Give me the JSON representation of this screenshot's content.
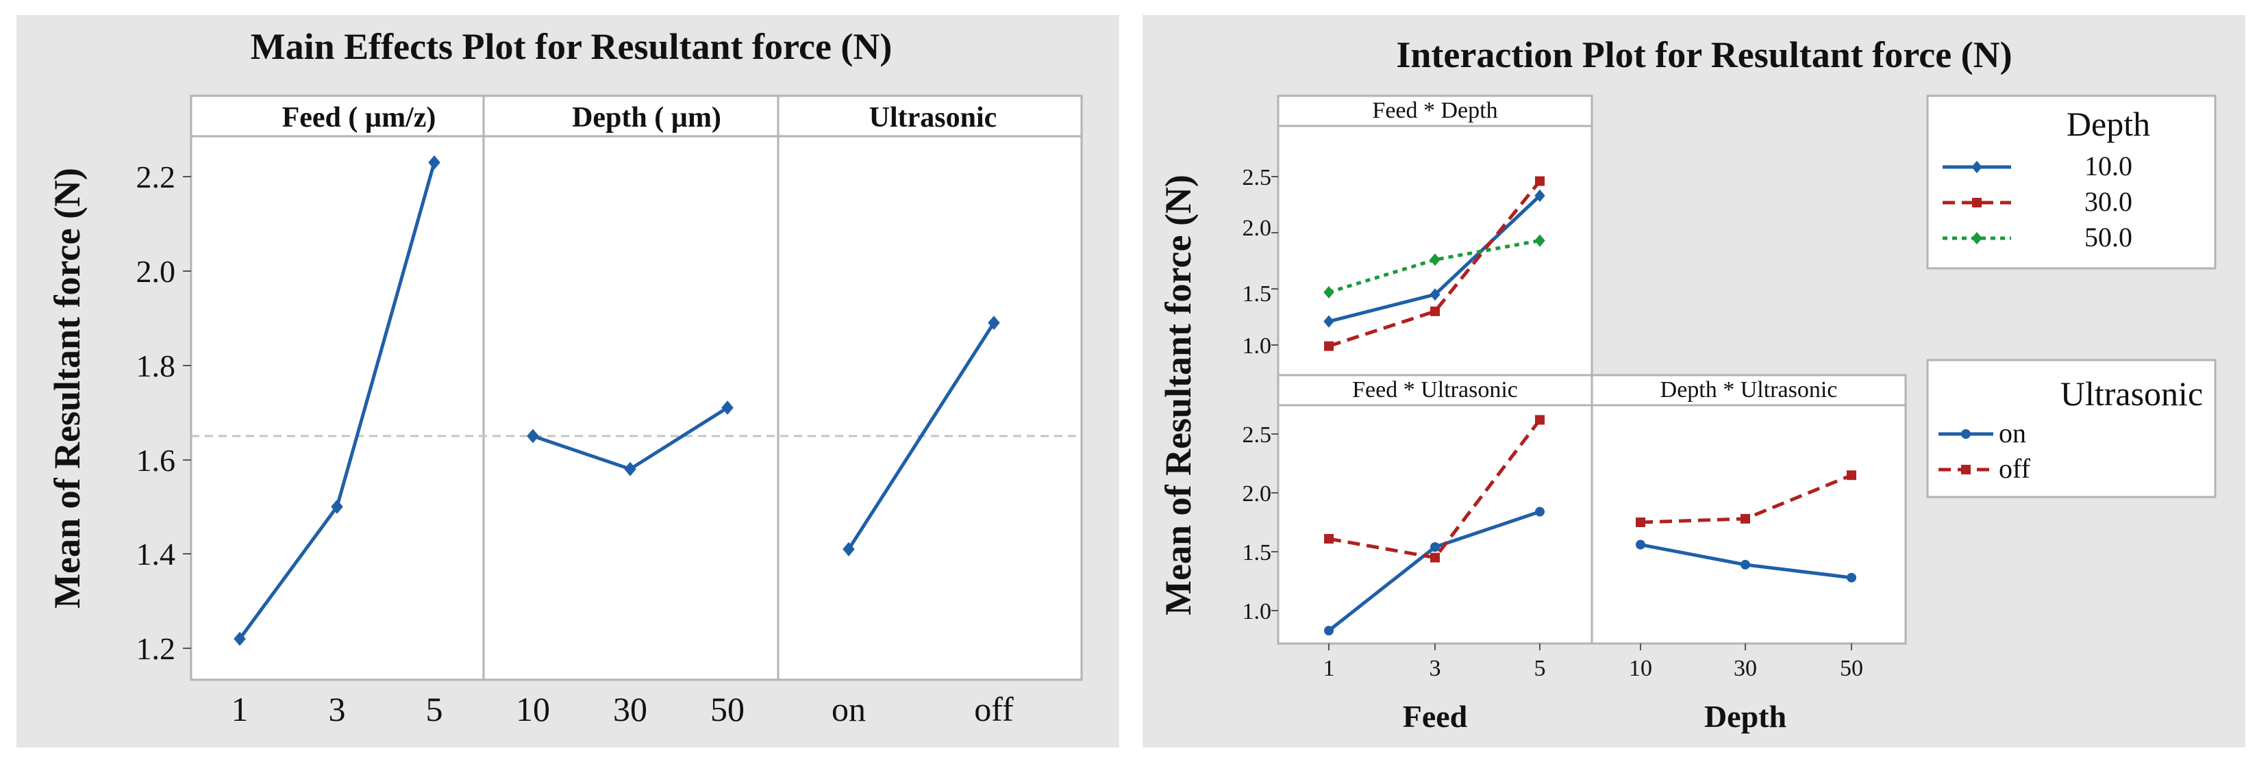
{
  "main_effects": {
    "title": "Main Effects Plot for Resultant force (N)",
    "ylabel": "Mean of Resultant force (N)",
    "y_ticks": [
      "1.2",
      "1.4",
      "1.6",
      "1.8",
      "2.0",
      "2.2"
    ],
    "panels": [
      {
        "title": "Feed ( µm/z)",
        "ticks": [
          "1",
          "3",
          "5"
        ]
      },
      {
        "title": "Depth ( µm)",
        "ticks": [
          "10",
          "30",
          "50"
        ]
      },
      {
        "title": "Ultrasonic",
        "ticks": [
          "on",
          "off"
        ]
      }
    ]
  },
  "interaction": {
    "title": "Interaction Plot for Resultant force (N)",
    "ylabel": "Mean of Resultant force (N)",
    "cells": {
      "feed_depth": "Feed * Depth",
      "feed_ultrasonic": "Feed * Ultrasonic",
      "depth_ultrasonic": "Depth * Ultrasonic"
    },
    "x_ticks_feed": [
      "1",
      "3",
      "5"
    ],
    "x_ticks_depth": [
      "10",
      "30",
      "50"
    ],
    "xlabel_feed": "Feed",
    "xlabel_depth": "Depth",
    "y_ticks_top": [
      "1.0",
      "1.5",
      "2.0",
      "2.5"
    ],
    "y_ticks_bottom": [
      "1.0",
      "1.5",
      "2.0",
      "2.5"
    ],
    "legend_depth": {
      "title": "Depth",
      "items": [
        {
          "label": "10.0",
          "color": "#1f5fa8",
          "dash": "solid",
          "marker": "diamond"
        },
        {
          "label": "30.0",
          "color": "#b02020",
          "dash": "dash",
          "marker": "square"
        },
        {
          "label": "50.0",
          "color": "#1a9a3a",
          "dash": "dot",
          "marker": "diamond"
        }
      ]
    },
    "legend_ultrasonic": {
      "title": "Ultrasonic",
      "items": [
        {
          "label": "on",
          "color": "#1f5fa8",
          "dash": "solid",
          "marker": "circle"
        },
        {
          "label": "off",
          "color": "#b02020",
          "dash": "dash",
          "marker": "square"
        }
      ]
    }
  },
  "chart_data": [
    {
      "type": "line",
      "title": "Main Effects Plot for Resultant force (N)",
      "ylabel": "Mean of Resultant force (N)",
      "ylim": [
        1.18,
        2.29
      ],
      "reference_line": 1.65,
      "color": "#1f5fa8",
      "panels": [
        {
          "name": "Feed ( µm/z)",
          "categories": [
            "1",
            "3",
            "5"
          ],
          "values": [
            1.22,
            1.5,
            2.23
          ]
        },
        {
          "name": "Depth ( µm)",
          "categories": [
            "10",
            "30",
            "50"
          ],
          "values": [
            1.65,
            1.58,
            1.71
          ]
        },
        {
          "name": "Ultrasonic",
          "categories": [
            "on",
            "off"
          ],
          "values": [
            1.41,
            1.89
          ]
        }
      ]
    },
    {
      "type": "line",
      "title": "Interaction Plot for Resultant force (N)",
      "ylabel": "Mean of Resultant force (N)",
      "ylim": [
        0.7,
        2.75
      ],
      "cells": [
        {
          "name": "Feed * Depth",
          "x_name": "Feed",
          "x": [
            "1",
            "3",
            "5"
          ],
          "legend": "Depth",
          "series": [
            {
              "name": "10.0",
              "values": [
                1.21,
                1.45,
                2.33
              ]
            },
            {
              "name": "30.0",
              "values": [
                0.99,
                1.3,
                2.46
              ]
            },
            {
              "name": "50.0",
              "values": [
                1.47,
                1.76,
                1.93
              ]
            }
          ]
        },
        {
          "name": "Feed * Ultrasonic",
          "x_name": "Feed",
          "x": [
            "1",
            "3",
            "5"
          ],
          "legend": "Ultrasonic",
          "series": [
            {
              "name": "on",
              "values": [
                0.83,
                1.54,
                1.84
              ]
            },
            {
              "name": "off",
              "values": [
                1.61,
                1.45,
                2.62
              ]
            }
          ]
        },
        {
          "name": "Depth * Ultrasonic",
          "x_name": "Depth",
          "x": [
            "10",
            "30",
            "50"
          ],
          "legend": "Ultrasonic",
          "series": [
            {
              "name": "on",
              "values": [
                1.56,
                1.39,
                1.28
              ]
            },
            {
              "name": "off",
              "values": [
                1.75,
                1.78,
                2.15
              ]
            }
          ]
        }
      ]
    }
  ]
}
